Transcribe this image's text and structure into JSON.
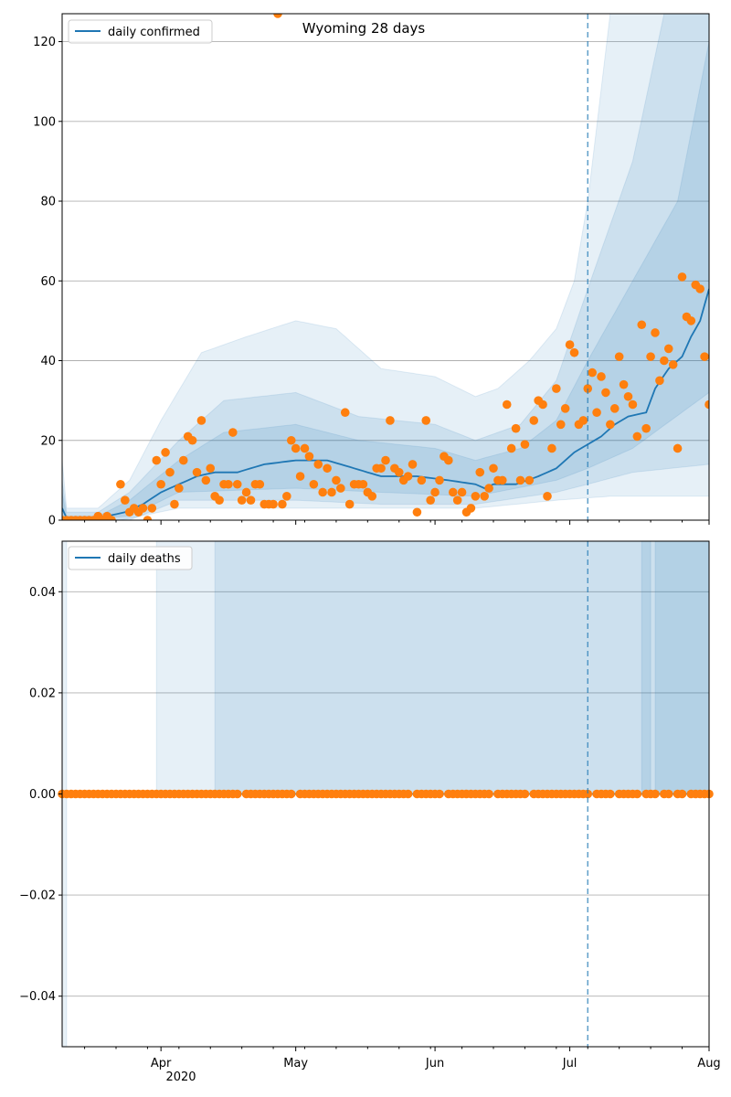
{
  "figure": {
    "title": "Wyoming 28 days"
  },
  "colors": {
    "line": "#1f77b4",
    "points": "#ff7f0e",
    "band": "#1f77b4",
    "grid": "#b0b0b0"
  },
  "chart_data": [
    {
      "type": "line",
      "legend": "daily confirmed",
      "legend_position": "top-left",
      "grid": "horizontal",
      "xlim": [
        "2020-03-10",
        "2020-08-01"
      ],
      "ylim": [
        0,
        127
      ],
      "yticks": [
        0,
        20,
        40,
        60,
        80,
        100,
        120
      ],
      "vline_date": "2020-07-05",
      "x_tick_labels": [
        "Apr",
        "May",
        "Jun",
        "Jul",
        "Aug"
      ],
      "x_year_label": "2020",
      "median": [
        [
          "2020-03-10",
          3
        ],
        [
          "2020-03-11",
          0.5
        ],
        [
          "2020-03-15",
          0.5
        ],
        [
          "2020-03-20",
          1
        ],
        [
          "2020-03-24",
          2
        ],
        [
          "2020-03-28",
          4
        ],
        [
          "2020-04-01",
          7
        ],
        [
          "2020-04-05",
          9
        ],
        [
          "2020-04-09",
          11
        ],
        [
          "2020-04-13",
          12
        ],
        [
          "2020-04-18",
          12
        ],
        [
          "2020-04-24",
          14
        ],
        [
          "2020-05-01",
          15
        ],
        [
          "2020-05-08",
          15
        ],
        [
          "2020-05-14",
          13
        ],
        [
          "2020-05-20",
          11
        ],
        [
          "2020-05-28",
          11
        ],
        [
          "2020-06-04",
          10
        ],
        [
          "2020-06-10",
          9
        ],
        [
          "2020-06-12",
          8
        ],
        [
          "2020-06-14",
          9
        ],
        [
          "2020-06-19",
          9
        ],
        [
          "2020-06-24",
          11
        ],
        [
          "2020-06-28",
          13
        ],
        [
          "2020-07-02",
          17
        ],
        [
          "2020-07-05",
          19
        ],
        [
          "2020-07-08",
          21
        ],
        [
          "2020-07-11",
          24
        ],
        [
          "2020-07-14",
          26
        ],
        [
          "2020-07-18",
          27
        ],
        [
          "2020-07-20",
          33
        ],
        [
          "2020-07-23",
          38
        ],
        [
          "2020-07-26",
          41
        ],
        [
          "2020-07-28",
          46
        ],
        [
          "2020-07-30",
          50
        ],
        [
          "2020-07-31",
          54
        ],
        [
          "2020-08-01",
          58
        ]
      ],
      "bands": [
        {
          "opacity": 0.11,
          "lower": [
            [
              "2020-03-10",
              0
            ],
            [
              "2020-03-23",
              0
            ],
            [
              "2020-04-05",
              3
            ],
            [
              "2020-05-01",
              3
            ],
            [
              "2020-05-20",
              3
            ],
            [
              "2020-06-10",
              3
            ],
            [
              "2020-06-28",
              5
            ],
            [
              "2020-07-10",
              6
            ],
            [
              "2020-07-25",
              6
            ],
            [
              "2020-08-01",
              6
            ]
          ],
          "upper": [
            [
              "2020-03-10",
              15
            ],
            [
              "2020-03-11",
              3
            ],
            [
              "2020-03-18",
              3
            ],
            [
              "2020-03-25",
              10
            ],
            [
              "2020-04-01",
              25
            ],
            [
              "2020-04-10",
              42
            ],
            [
              "2020-04-20",
              46
            ],
            [
              "2020-05-01",
              50
            ],
            [
              "2020-05-10",
              48
            ],
            [
              "2020-05-20",
              38
            ],
            [
              "2020-06-01",
              36
            ],
            [
              "2020-06-10",
              31
            ],
            [
              "2020-06-15",
              33
            ],
            [
              "2020-06-22",
              40
            ],
            [
              "2020-06-28",
              48
            ],
            [
              "2020-07-02",
              60
            ],
            [
              "2020-07-05",
              80
            ],
            [
              "2020-07-10",
              127
            ],
            [
              "2020-08-01",
              127
            ]
          ]
        },
        {
          "opacity": 0.13,
          "lower": [
            [
              "2020-03-10",
              0
            ],
            [
              "2020-03-25",
              0
            ],
            [
              "2020-04-05",
              5
            ],
            [
              "2020-05-01",
              5
            ],
            [
              "2020-05-20",
              4
            ],
            [
              "2020-06-10",
              4
            ],
            [
              "2020-06-28",
              7
            ],
            [
              "2020-07-05",
              9
            ],
            [
              "2020-07-15",
              12
            ],
            [
              "2020-08-01",
              14
            ]
          ],
          "upper": [
            [
              "2020-03-10",
              10
            ],
            [
              "2020-03-11",
              2
            ],
            [
              "2020-03-18",
              2
            ],
            [
              "2020-03-25",
              7
            ],
            [
              "2020-04-05",
              20
            ],
            [
              "2020-04-15",
              30
            ],
            [
              "2020-05-01",
              32
            ],
            [
              "2020-05-15",
              26
            ],
            [
              "2020-06-01",
              24
            ],
            [
              "2020-06-10",
              20
            ],
            [
              "2020-06-20",
              24
            ],
            [
              "2020-06-28",
              35
            ],
            [
              "2020-07-05",
              58
            ],
            [
              "2020-07-15",
              90
            ],
            [
              "2020-07-22",
              127
            ],
            [
              "2020-08-01",
              127
            ]
          ]
        },
        {
          "opacity": 0.13,
          "lower": [
            [
              "2020-03-10",
              0
            ],
            [
              "2020-03-25",
              1
            ],
            [
              "2020-04-05",
              7
            ],
            [
              "2020-05-01",
              8
            ],
            [
              "2020-05-20",
              7
            ],
            [
              "2020-06-10",
              6
            ],
            [
              "2020-06-28",
              10
            ],
            [
              "2020-07-05",
              13
            ],
            [
              "2020-07-15",
              18
            ],
            [
              "2020-08-01",
              32
            ]
          ],
          "upper": [
            [
              "2020-03-10",
              7
            ],
            [
              "2020-03-11",
              1
            ],
            [
              "2020-03-18",
              1
            ],
            [
              "2020-03-25",
              5
            ],
            [
              "2020-04-05",
              15
            ],
            [
              "2020-04-15",
              22
            ],
            [
              "2020-05-01",
              24
            ],
            [
              "2020-05-15",
              20
            ],
            [
              "2020-06-01",
              18
            ],
            [
              "2020-06-10",
              15
            ],
            [
              "2020-06-20",
              18
            ],
            [
              "2020-06-28",
              25
            ],
            [
              "2020-07-05",
              40
            ],
            [
              "2020-07-15",
              60
            ],
            [
              "2020-07-25",
              80
            ],
            [
              "2020-08-01",
              120
            ]
          ]
        }
      ],
      "observed": [
        [
          "2020-03-10",
          0
        ],
        [
          "2020-03-11",
          0
        ],
        [
          "2020-03-12",
          0
        ],
        [
          "2020-03-13",
          0
        ],
        [
          "2020-03-14",
          0
        ],
        [
          "2020-03-15",
          0
        ],
        [
          "2020-03-16",
          0
        ],
        [
          "2020-03-17",
          0
        ],
        [
          "2020-03-18",
          1
        ],
        [
          "2020-03-19",
          0
        ],
        [
          "2020-03-20",
          1
        ],
        [
          "2020-03-21",
          0
        ],
        [
          "2020-03-23",
          9
        ],
        [
          "2020-03-24",
          5
        ],
        [
          "2020-03-25",
          2
        ],
        [
          "2020-03-26",
          3
        ],
        [
          "2020-03-27",
          2
        ],
        [
          "2020-03-28",
          3
        ],
        [
          "2020-03-29",
          0
        ],
        [
          "2020-03-30",
          3
        ],
        [
          "2020-03-31",
          15
        ],
        [
          "2020-04-01",
          9
        ],
        [
          "2020-04-02",
          17
        ],
        [
          "2020-04-03",
          12
        ],
        [
          "2020-04-04",
          4
        ],
        [
          "2020-04-05",
          8
        ],
        [
          "2020-04-06",
          15
        ],
        [
          "2020-04-07",
          21
        ],
        [
          "2020-04-08",
          20
        ],
        [
          "2020-04-09",
          12
        ],
        [
          "2020-04-10",
          25
        ],
        [
          "2020-04-11",
          10
        ],
        [
          "2020-04-12",
          13
        ],
        [
          "2020-04-13",
          6
        ],
        [
          "2020-04-14",
          5
        ],
        [
          "2020-04-15",
          9
        ],
        [
          "2020-04-16",
          9
        ],
        [
          "2020-04-17",
          22
        ],
        [
          "2020-04-18",
          9
        ],
        [
          "2020-04-19",
          5
        ],
        [
          "2020-04-20",
          7
        ],
        [
          "2020-04-21",
          5
        ],
        [
          "2020-04-22",
          9
        ],
        [
          "2020-04-23",
          9
        ],
        [
          "2020-04-24",
          4
        ],
        [
          "2020-04-25",
          4
        ],
        [
          "2020-04-26",
          4
        ],
        [
          "2020-04-27",
          127
        ],
        [
          "2020-04-28",
          4
        ],
        [
          "2020-04-29",
          6
        ],
        [
          "2020-04-30",
          20
        ],
        [
          "2020-05-01",
          18
        ],
        [
          "2020-05-02",
          11
        ],
        [
          "2020-05-03",
          18
        ],
        [
          "2020-05-04",
          16
        ],
        [
          "2020-05-05",
          9
        ],
        [
          "2020-05-06",
          14
        ],
        [
          "2020-05-07",
          7
        ],
        [
          "2020-05-08",
          13
        ],
        [
          "2020-05-09",
          7
        ],
        [
          "2020-05-10",
          10
        ],
        [
          "2020-05-11",
          8
        ],
        [
          "2020-05-12",
          27
        ],
        [
          "2020-05-13",
          4
        ],
        [
          "2020-05-14",
          9
        ],
        [
          "2020-05-15",
          9
        ],
        [
          "2020-05-16",
          9
        ],
        [
          "2020-05-17",
          7
        ],
        [
          "2020-05-18",
          6
        ],
        [
          "2020-05-19",
          13
        ],
        [
          "2020-05-20",
          13
        ],
        [
          "2020-05-21",
          15
        ],
        [
          "2020-05-22",
          25
        ],
        [
          "2020-05-23",
          13
        ],
        [
          "2020-05-24",
          12
        ],
        [
          "2020-05-25",
          10
        ],
        [
          "2020-05-26",
          11
        ],
        [
          "2020-05-27",
          14
        ],
        [
          "2020-05-28",
          2
        ],
        [
          "2020-05-29",
          10
        ],
        [
          "2020-05-30",
          25
        ],
        [
          "2020-05-31",
          5
        ],
        [
          "2020-06-01",
          7
        ],
        [
          "2020-06-02",
          10
        ],
        [
          "2020-06-03",
          16
        ],
        [
          "2020-06-04",
          15
        ],
        [
          "2020-06-05",
          7
        ],
        [
          "2020-06-06",
          5
        ],
        [
          "2020-06-07",
          7
        ],
        [
          "2020-06-08",
          2
        ],
        [
          "2020-06-09",
          3
        ],
        [
          "2020-06-10",
          6
        ],
        [
          "2020-06-11",
          12
        ],
        [
          "2020-06-12",
          6
        ],
        [
          "2020-06-13",
          8
        ],
        [
          "2020-06-14",
          13
        ],
        [
          "2020-06-15",
          10
        ],
        [
          "2020-06-16",
          10
        ],
        [
          "2020-06-17",
          29
        ],
        [
          "2020-06-18",
          18
        ],
        [
          "2020-06-19",
          23
        ],
        [
          "2020-06-20",
          10
        ],
        [
          "2020-06-21",
          19
        ],
        [
          "2020-06-22",
          10
        ],
        [
          "2020-06-23",
          25
        ],
        [
          "2020-06-24",
          30
        ],
        [
          "2020-06-25",
          29
        ],
        [
          "2020-06-26",
          6
        ],
        [
          "2020-06-27",
          18
        ],
        [
          "2020-06-28",
          33
        ],
        [
          "2020-06-29",
          24
        ],
        [
          "2020-06-30",
          28
        ],
        [
          "2020-07-01",
          44
        ],
        [
          "2020-07-02",
          42
        ],
        [
          "2020-07-03",
          24
        ],
        [
          "2020-07-04",
          25
        ],
        [
          "2020-07-05",
          33
        ],
        [
          "2020-07-06",
          37
        ],
        [
          "2020-07-07",
          27
        ],
        [
          "2020-07-08",
          36
        ],
        [
          "2020-07-09",
          32
        ],
        [
          "2020-07-10",
          24
        ],
        [
          "2020-07-11",
          28
        ],
        [
          "2020-07-12",
          41
        ],
        [
          "2020-07-13",
          34
        ],
        [
          "2020-07-14",
          31
        ],
        [
          "2020-07-15",
          29
        ],
        [
          "2020-07-16",
          21
        ],
        [
          "2020-07-17",
          49
        ],
        [
          "2020-07-18",
          23
        ],
        [
          "2020-07-19",
          41
        ],
        [
          "2020-07-20",
          47
        ],
        [
          "2020-07-21",
          35
        ],
        [
          "2020-07-22",
          40
        ],
        [
          "2020-07-23",
          43
        ],
        [
          "2020-07-24",
          39
        ],
        [
          "2020-07-25",
          18
        ],
        [
          "2020-07-26",
          61
        ],
        [
          "2020-07-27",
          51
        ],
        [
          "2020-07-28",
          50
        ],
        [
          "2020-07-29",
          59
        ],
        [
          "2020-07-30",
          58
        ],
        [
          "2020-07-31",
          41
        ],
        [
          "2020-08-01",
          29
        ]
      ]
    },
    {
      "type": "line",
      "legend": "daily deaths",
      "legend_position": "top-left",
      "grid": "horizontal",
      "xlim": [
        "2020-03-10",
        "2020-08-01"
      ],
      "ylim": [
        -0.05,
        0.05
      ],
      "yticks": [
        -0.04,
        -0.02,
        0.0,
        0.02,
        0.04
      ],
      "ytick_labels": [
        "−0.04",
        "−0.02",
        "0.00",
        "0.02",
        "0.04"
      ],
      "vline_date": "2020-07-05",
      "x_tick_labels": [
        "Apr",
        "May",
        "Jun",
        "Jul",
        "Aug"
      ],
      "x_year_label": "2020",
      "median": [
        [
          "2020-03-10",
          0
        ],
        [
          "2020-08-01",
          0
        ]
      ],
      "bands": [
        {
          "opacity": 0.1,
          "from": "2020-03-10",
          "to": "2020-03-11",
          "lower": -0.05,
          "upper": 0.05
        },
        {
          "opacity": 0.11,
          "from": "2020-03-31",
          "to": "2020-08-01",
          "lower": 0,
          "upper": 0.05
        },
        {
          "opacity": 0.13,
          "from": "2020-04-13",
          "to": "2020-08-01",
          "lower": 0,
          "upper": 0.05
        },
        {
          "opacity": 0.13,
          "from": "2020-07-17",
          "to": "2020-07-19",
          "lower": 0,
          "upper": 0.05
        },
        {
          "opacity": 0.14,
          "from": "2020-07-20",
          "to": "2020-08-01",
          "lower": 0,
          "upper": 0.05
        }
      ],
      "observed_value": 0,
      "observed_dates_start": "2020-03-10",
      "observed_dates_end": "2020-08-01",
      "observed_missing": [
        "2020-04-19",
        "2020-05-01",
        "2020-05-27",
        "2020-06-03",
        "2020-06-14",
        "2020-06-22",
        "2020-07-06",
        "2020-07-11",
        "2020-07-17",
        "2020-07-21",
        "2020-07-24",
        "2020-07-27"
      ]
    }
  ]
}
